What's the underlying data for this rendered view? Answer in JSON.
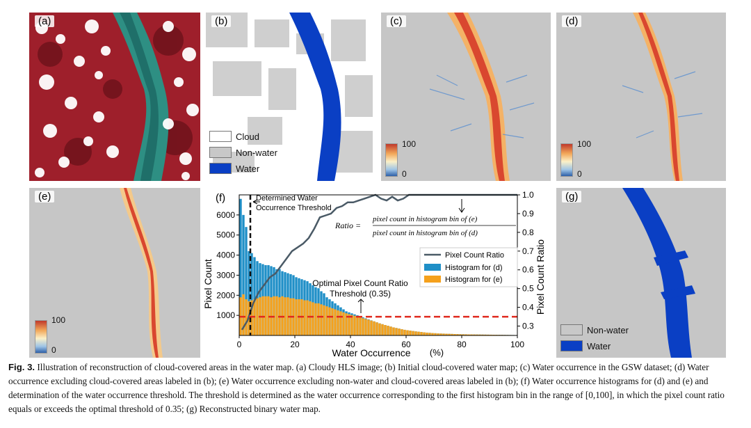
{
  "panels": {
    "a": {
      "label": "(a)"
    },
    "b": {
      "label": "(b)",
      "legend": [
        "Cloud",
        "Non-water",
        "Water"
      ]
    },
    "c": {
      "label": "(c)",
      "cbar_max": "100",
      "cbar_min": "0"
    },
    "d": {
      "label": "(d)",
      "cbar_max": "100",
      "cbar_min": "0"
    },
    "e": {
      "label": "(e)",
      "cbar_max": "100",
      "cbar_min": "0"
    },
    "f": {
      "label": "(f)"
    },
    "g": {
      "label": "(g)",
      "legend": [
        "Non-water",
        "Water"
      ]
    }
  },
  "colors": {
    "water_blue": "#0a3fc4",
    "non_water_gray": "#c8c8c8",
    "cloud_white": "#ffffff",
    "hist_d": "#1f8fc7",
    "hist_e": "#f5a11c",
    "ratio_line": "#4a5a66",
    "threshold_red": "#e0291e"
  },
  "chart_data": {
    "type": "bar",
    "xlabel": "Water Occurrence",
    "xunit": "(%)",
    "ylabel": "Pixel Count",
    "y2label": "Pixel Count Ratio",
    "xlim": [
      0,
      100
    ],
    "ylim": [
      0,
      7000
    ],
    "y2lim": [
      0.25,
      1.0
    ],
    "xticks": [
      "0",
      "20",
      "40",
      "60",
      "80",
      "100"
    ],
    "yticks": [
      "1000",
      "2000",
      "3000",
      "4000",
      "5000",
      "6000"
    ],
    "y2ticks": [
      "0.3",
      "0.4",
      "0.5",
      "0.6",
      "0.7",
      "0.8",
      "0.9",
      "1.0"
    ],
    "legend": [
      "Pixel Count Ratio",
      "Histogram for (d)",
      "Histogram for (e)"
    ],
    "annotations": {
      "determined": [
        "Determined Water",
        "Occurrence Threshold"
      ],
      "optimal": [
        "Optimal Pixel Count Ratio",
        "Threshold (0.35)"
      ],
      "ratio_prefix": "Ratio =",
      "ratio_num": "pixel count in histogram bin of (e)",
      "ratio_den": "pixel count in histogram bin of (d)"
    },
    "determined_threshold_x": 4,
    "optimal_ratio": 0.35,
    "series": [
      {
        "name": "Histogram for (d)",
        "x": [
          1,
          2,
          3,
          4,
          5,
          6,
          7,
          8,
          9,
          10,
          11,
          12,
          13,
          14,
          15,
          16,
          17,
          18,
          19,
          20,
          21,
          22,
          23,
          24,
          25,
          26,
          27,
          28,
          29,
          30,
          31,
          32,
          33,
          34,
          35,
          36,
          37,
          38,
          39,
          40,
          41,
          42,
          43,
          44,
          45,
          46,
          47,
          48,
          49,
          50,
          51,
          52,
          53,
          54,
          55,
          56,
          57,
          58,
          59,
          60,
          61,
          62,
          63,
          64,
          65,
          66,
          67,
          68,
          69,
          70,
          71,
          72,
          73,
          74,
          75,
          76,
          77,
          78,
          79,
          80,
          81,
          82,
          83,
          84,
          85,
          86,
          87,
          88,
          89,
          90,
          91,
          92,
          93,
          94,
          95,
          96,
          97,
          98,
          99,
          100
        ],
        "values": [
          6800,
          6000,
          5400,
          4200,
          4100,
          3900,
          3700,
          3600,
          3550,
          3500,
          3500,
          3450,
          3400,
          3300,
          3300,
          3200,
          3150,
          3100,
          3050,
          3000,
          2900,
          2850,
          2800,
          2750,
          2700,
          2600,
          2500,
          2400,
          2350,
          2200,
          2100,
          1900,
          1800,
          1700,
          1600,
          1500,
          1400,
          1300,
          1200,
          1150,
          1100,
          1050,
          1000,
          950,
          900,
          850,
          800,
          750,
          700,
          650,
          600,
          560,
          520,
          480,
          440,
          400,
          370,
          340,
          310,
          280,
          260,
          240,
          220,
          200,
          185,
          170,
          155,
          140,
          130,
          120,
          110,
          100,
          95,
          90,
          85,
          80,
          75,
          70,
          65,
          60,
          58,
          55,
          52,
          50,
          48,
          46,
          44,
          42,
          40,
          38,
          36,
          34,
          32,
          30,
          28,
          26,
          24,
          22,
          20,
          18
        ]
      },
      {
        "name": "Histogram for (e)",
        "x": [
          1,
          2,
          3,
          4,
          5,
          6,
          7,
          8,
          9,
          10,
          11,
          12,
          13,
          14,
          15,
          16,
          17,
          18,
          19,
          20,
          21,
          22,
          23,
          24,
          25,
          26,
          27,
          28,
          29,
          30,
          31,
          32,
          33,
          34,
          35,
          36,
          37,
          38,
          39,
          40,
          41,
          42,
          43,
          44,
          45,
          46,
          47,
          48,
          49,
          50,
          51,
          52,
          53,
          54,
          55,
          56,
          57,
          58,
          59,
          60,
          61,
          62,
          63,
          64,
          65,
          66,
          67,
          68,
          69,
          70,
          71,
          72,
          73,
          74,
          75,
          76,
          77,
          78,
          79,
          80,
          81,
          82,
          83,
          84,
          85,
          86,
          87,
          88,
          89,
          90,
          91,
          92,
          93,
          94,
          95,
          96,
          97,
          98,
          99,
          100
        ],
        "values": [
          1900,
          2050,
          1800,
          1700,
          1750,
          1800,
          1850,
          1900,
          1950,
          1950,
          1950,
          1900,
          1950,
          1950,
          1900,
          1950,
          1900,
          1900,
          1850,
          1850,
          1800,
          1800,
          1800,
          1750,
          1750,
          1700,
          1650,
          1600,
          1600,
          1550,
          1500,
          1450,
          1400,
          1350,
          1300,
          1250,
          1200,
          1150,
          1100,
          1060,
          1020,
          980,
          940,
          900,
          860,
          820,
          780,
          740,
          700,
          650,
          600,
          560,
          520,
          480,
          440,
          400,
          370,
          340,
          310,
          280,
          260,
          240,
          220,
          200,
          185,
          170,
          155,
          140,
          130,
          120,
          110,
          100,
          95,
          90,
          85,
          80,
          75,
          70,
          65,
          60,
          58,
          55,
          52,
          50,
          48,
          46,
          44,
          42,
          40,
          38,
          36,
          34,
          32,
          30,
          28,
          26,
          24,
          22,
          20,
          18
        ]
      },
      {
        "name": "Pixel Count Ratio",
        "x": [
          1,
          3,
          5,
          7,
          9,
          11,
          13,
          15,
          17,
          19,
          21,
          23,
          25,
          27,
          29,
          31,
          33,
          35,
          37,
          39,
          41,
          43,
          45,
          47,
          49,
          51,
          53,
          55,
          57,
          59,
          61,
          63,
          65,
          100
        ],
        "values": [
          0.28,
          0.33,
          0.42,
          0.48,
          0.52,
          0.56,
          0.58,
          0.62,
          0.66,
          0.7,
          0.72,
          0.74,
          0.77,
          0.82,
          0.88,
          0.89,
          0.9,
          0.93,
          0.94,
          0.96,
          0.96,
          0.97,
          0.98,
          0.99,
          1.0,
          0.98,
          0.97,
          0.99,
          0.97,
          0.98,
          1.0,
          1.0,
          1.0,
          1.0
        ]
      }
    ]
  },
  "caption": {
    "fig_label": "Fig. 3.",
    "text": "Illustration of reconstruction of cloud-covered areas in the water map. (a) Cloudy HLS image; (b) Initial cloud-covered water map; (c) Water occurrence in the GSW dataset; (d) Water occurrence excluding cloud-covered areas labeled in (b); (e) Water occurrence excluding non-water and cloud-covered areas labeled in (b); (f) Water occurrence histograms for (d) and (e) and determination of the water occurrence threshold. The threshold is determined as the water occurrence corresponding to the first histogram bin in the range of [0,100], in which the pixel count ratio equals or exceeds the optimal threshold of 0.35; (g) Reconstructed binary water map."
  }
}
